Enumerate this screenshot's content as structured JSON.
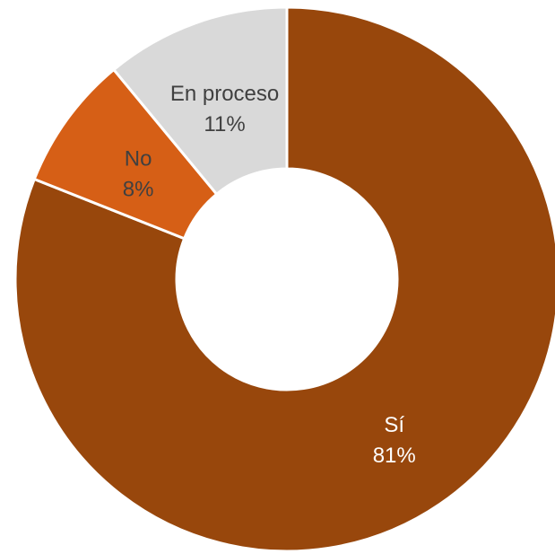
{
  "chart_data": {
    "type": "pie",
    "variant": "donut",
    "slices": [
      {
        "name": "Sí",
        "value": 81,
        "percent_label": "81%",
        "color": "#98470c",
        "label_color": "#ffffff"
      },
      {
        "name": "No",
        "value": 8,
        "percent_label": "8%",
        "color": "#d65f16",
        "label_color": "#404040"
      },
      {
        "name": "En proceso",
        "value": 11,
        "percent_label": "11%",
        "color": "#d9d9d9",
        "label_color": "#404040"
      }
    ],
    "legend": "none",
    "start_angle": "top, clockwise"
  }
}
